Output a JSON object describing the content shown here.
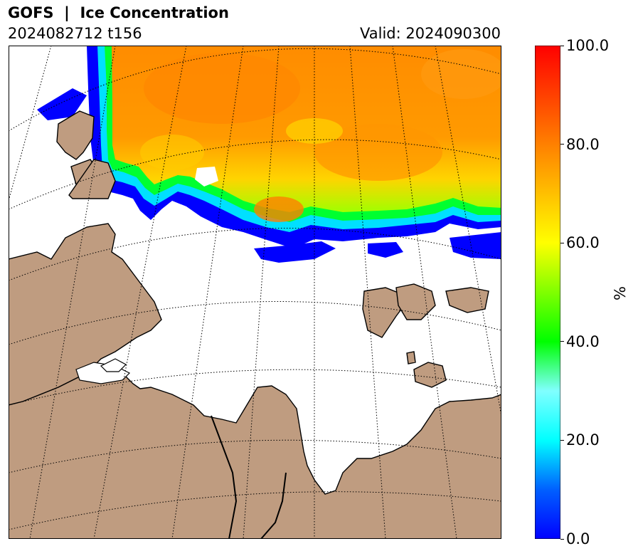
{
  "header": {
    "title": "GOFS  |  Ice Concentration",
    "run": "2024082712 t156",
    "valid": "Valid: 2024090300"
  },
  "colorbar": {
    "label": "%",
    "ticks": [
      "0.0",
      "20.0",
      "40.0",
      "60.0",
      "80.0",
      "100.0"
    ],
    "min": 0,
    "max": 100,
    "colors": [
      "#0000ff",
      "#00ffff",
      "#00ff00",
      "#ffff00",
      "#ff8000",
      "#ff0000"
    ]
  },
  "map": {
    "land_color": "#bf9c80",
    "ocean_color": "#ffffff",
    "ice_high_color": "#ff8c00",
    "ice_mid_color": "#ffd000",
    "ice_low_color": "#00ff30",
    "ice_edge_color": "#0000ff"
  }
}
